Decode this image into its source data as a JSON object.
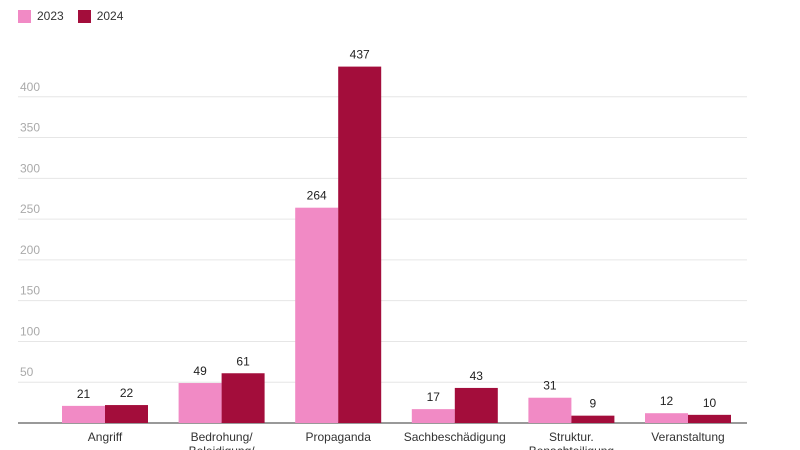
{
  "legend": [
    {
      "label": "2023",
      "color": "#f18ac5"
    },
    {
      "label": "2024",
      "color": "#a30d3b"
    }
  ],
  "chart_data": {
    "type": "bar",
    "categories": [
      "Angriff",
      "Bedrohung/ Beleidigung/",
      "Propaganda",
      "Sachbeschädigung",
      "Struktur. Benachteiligung",
      "Veranstaltung"
    ],
    "series": [
      {
        "name": "2023",
        "values": [
          21,
          49,
          264,
          17,
          31,
          12
        ],
        "color": "#f18ac5"
      },
      {
        "name": "2024",
        "values": [
          22,
          61,
          437,
          43,
          9,
          10
        ],
        "color": "#a30d3b"
      }
    ],
    "ylim": [
      0,
      450
    ],
    "yticks": [
      50,
      100,
      150,
      200,
      250,
      300,
      350,
      400
    ],
    "grid": true,
    "legend_position": "top-left"
  }
}
